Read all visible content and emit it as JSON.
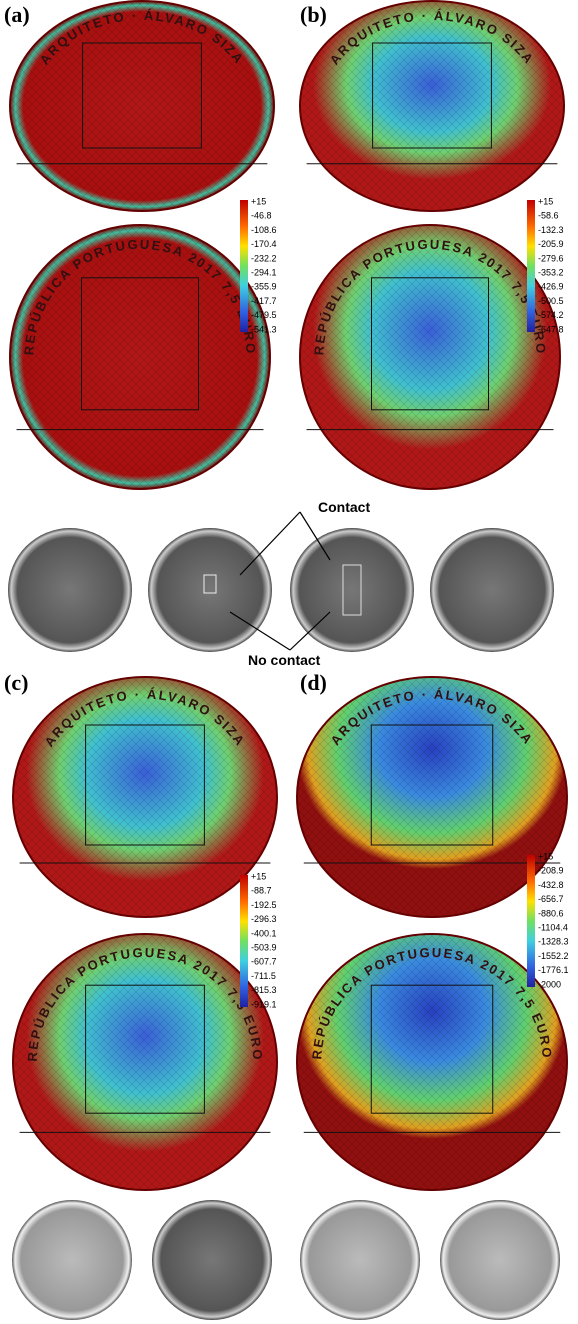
{
  "panels": [
    {
      "label": "(a)",
      "colorbar": [
        "+15",
        "-46.8",
        "-108.6",
        "-170.4",
        "-232.2",
        "-294.1",
        "-355.9",
        "-417.7",
        "-479.5",
        "-541.3"
      ]
    },
    {
      "label": "(b)",
      "colorbar": [
        "+15",
        "-58.6",
        "-132.3",
        "-205.9",
        "-279.6",
        "-353.2",
        "-426.9",
        "-500.5",
        "-574.2",
        "-647.8"
      ]
    },
    {
      "label": "(c)",
      "colorbar": [
        "+15",
        "-88.7",
        "-192.5",
        "-296.3",
        "-400.1",
        "-503.9",
        "-607.7",
        "-711.5",
        "-815.3",
        "-919.1"
      ]
    },
    {
      "label": "(d)",
      "colorbar": [
        "+15",
        "-208.9",
        "-432.8",
        "-656.7",
        "-880.6",
        "-1104.4",
        "-1328.3",
        "-1552.2",
        "-1776.1",
        "-2000"
      ]
    }
  ],
  "annotations": {
    "contact": "Contact",
    "no_contact": "No contact"
  },
  "coin_inscriptions": {
    "obverse": "ARQUITETO · ÁLVARO SIZA",
    "reverse": "REPÚBLICA PORTUGUESA 2017 7,5 EURO"
  }
}
